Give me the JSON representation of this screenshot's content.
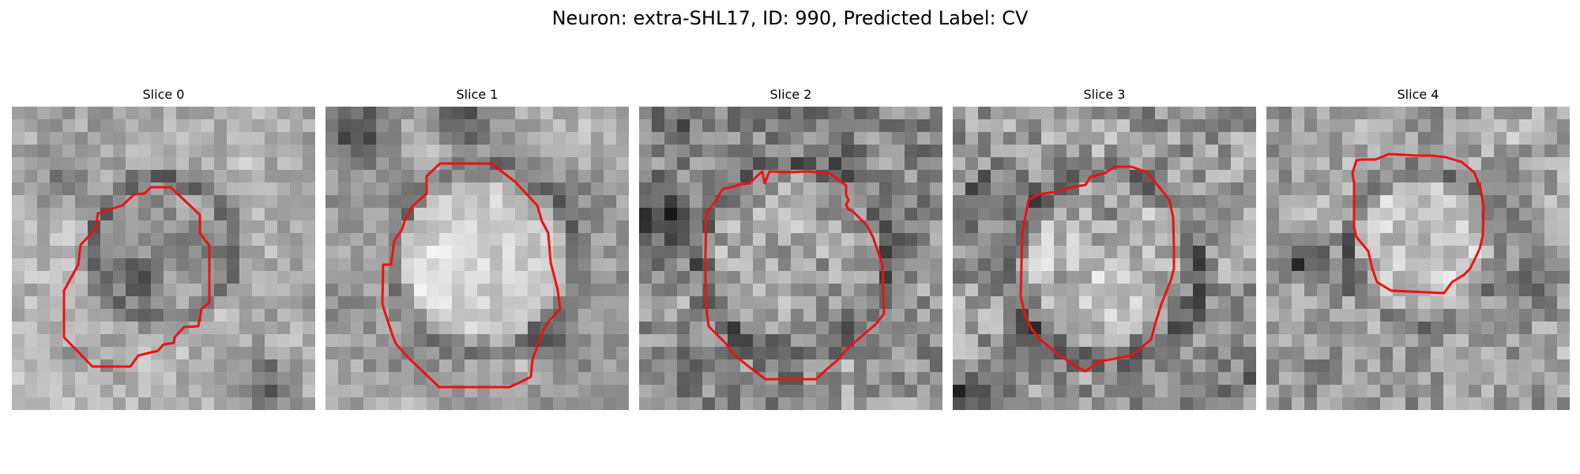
{
  "figure": {
    "title": "Neuron: extra-SHL17, ID: 990, Predicted Label: CV"
  },
  "outline_color": "#ee1111",
  "panels": [
    {
      "label": "Slice 0"
    },
    {
      "label": "Slice 1"
    },
    {
      "label": "Slice 2"
    },
    {
      "label": "Slice 3"
    },
    {
      "label": "Slice 4"
    }
  ]
}
